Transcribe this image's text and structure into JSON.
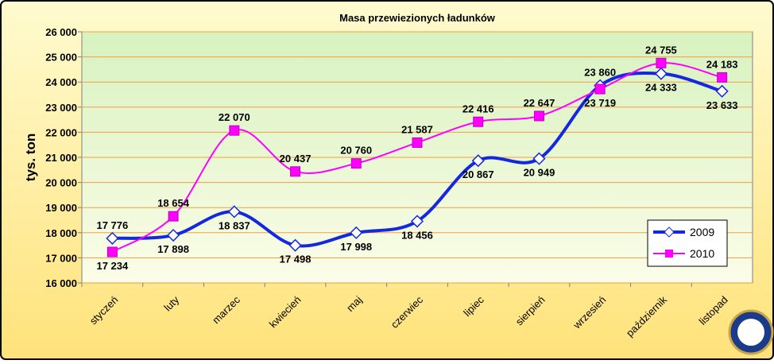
{
  "chart_data": {
    "type": "line",
    "title": "Masa przewiezionych ładunków",
    "y_label": "tys. ton",
    "categories": [
      "styczeń",
      "luty",
      "marzec",
      "kwiecień",
      "maj",
      "czerwiec",
      "lipiec",
      "sierpień",
      "wrzesień",
      "październik",
      "listopad"
    ],
    "series": [
      {
        "name": "2009",
        "color": "#1428e0",
        "values": [
          17776,
          17898,
          18837,
          17498,
          17998,
          18456,
          20867,
          20949,
          23860,
          24333,
          23633
        ],
        "value_labels": [
          "17 776",
          "17 898",
          "18 837",
          "17 498",
          "17 998",
          "18 456",
          "20 867",
          "20 949",
          "23 860",
          "24 333",
          "23 633"
        ]
      },
      {
        "name": "2010",
        "color": "#ff00ff",
        "values": [
          17234,
          18654,
          22070,
          20437,
          20760,
          21587,
          22416,
          22647,
          23719,
          24755,
          24183
        ],
        "value_labels": [
          "17 234",
          "18 654",
          "22 070",
          "20 437",
          "20 760",
          "21 587",
          "22 416",
          "22 647",
          "23 719",
          "24 755",
          "24 183"
        ]
      }
    ],
    "ylim": [
      16000,
      26000
    ],
    "yticks": [
      {
        "value": 16000,
        "label": "16 000"
      },
      {
        "value": 17000,
        "label": "17 000"
      },
      {
        "value": 18000,
        "label": "18 000"
      },
      {
        "value": 19000,
        "label": "19 000"
      },
      {
        "value": 20000,
        "label": "20 000"
      },
      {
        "value": 21000,
        "label": "21 000"
      },
      {
        "value": 22000,
        "label": "22 000"
      },
      {
        "value": 23000,
        "label": "23 000"
      },
      {
        "value": 24000,
        "label": "24 000"
      },
      {
        "value": 25000,
        "label": "25 000"
      },
      {
        "value": 26000,
        "label": "26 000"
      }
    ],
    "grid": true,
    "legend": "lower right",
    "smooth": true
  }
}
